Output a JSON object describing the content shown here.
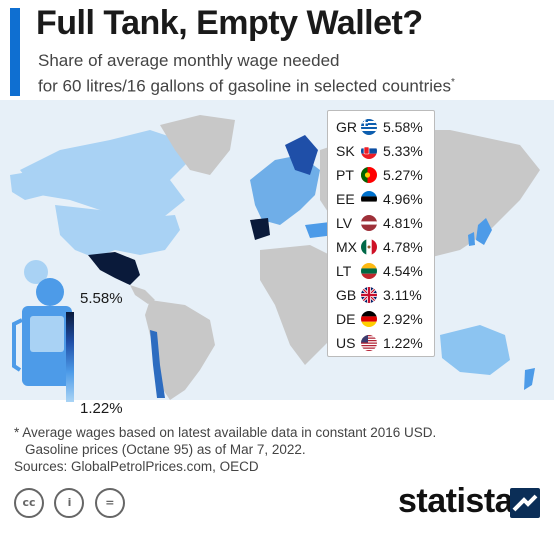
{
  "header": {
    "title": "Full Tank, Empty Wallet?",
    "subtitle_line1": "Share of average monthly wage needed",
    "subtitle_line2": "for 60 litres/16 gallons of gasoline in selected countries",
    "subtitle_mark": "*"
  },
  "colors": {
    "accent": "#0f6fd1",
    "ocean": "#e7f0f8",
    "land_grey": "#c8c8c8",
    "scale_dark": "#0a1a3a",
    "scale_light": "#aad4f5",
    "brand_mark": "#0b2e57"
  },
  "chart_data": {
    "type": "table",
    "title": "Full Tank, Empty Wallet?",
    "rows": [
      {
        "code": "GR",
        "flag": "greece-flag-icon",
        "value": 5.58,
        "label": "5.58%"
      },
      {
        "code": "SK",
        "flag": "slovakia-flag-icon",
        "value": 5.33,
        "label": "5.33%"
      },
      {
        "code": "PT",
        "flag": "portugal-flag-icon",
        "value": 5.27,
        "label": "5.27%"
      },
      {
        "code": "EE",
        "flag": "estonia-flag-icon",
        "value": 4.96,
        "label": "4.96%"
      },
      {
        "code": "LV",
        "flag": "latvia-flag-icon",
        "value": 4.81,
        "label": "4.81%"
      },
      {
        "code": "MX",
        "flag": "mexico-flag-icon",
        "value": 4.78,
        "label": "4.78%"
      },
      {
        "code": "LT",
        "flag": "lithuania-flag-icon",
        "value": 4.54,
        "label": "4.54%"
      },
      {
        "code": "GB",
        "flag": "uk-flag-icon",
        "value": 3.11,
        "label": "3.11%"
      },
      {
        "code": "DE",
        "flag": "germany-flag-icon",
        "value": 2.92,
        "label": "2.92%"
      },
      {
        "code": "US",
        "flag": "usa-flag-icon",
        "value": 1.22,
        "label": "1.22%"
      }
    ],
    "color_scale": {
      "max_label": "5.58%",
      "min_label": "1.22%",
      "max": 5.58,
      "min": 1.22
    }
  },
  "footnote": {
    "line1": "* Average wages based on latest available data in constant 2016 USD.",
    "line2": "Gasoline prices (Octane 95) as of Mar 7, 2022.",
    "line3": "Sources: GlobalPetrolPrices.com, OECD"
  },
  "footer": {
    "license_icons": [
      "cc",
      "i",
      "="
    ],
    "brand": "statista"
  }
}
